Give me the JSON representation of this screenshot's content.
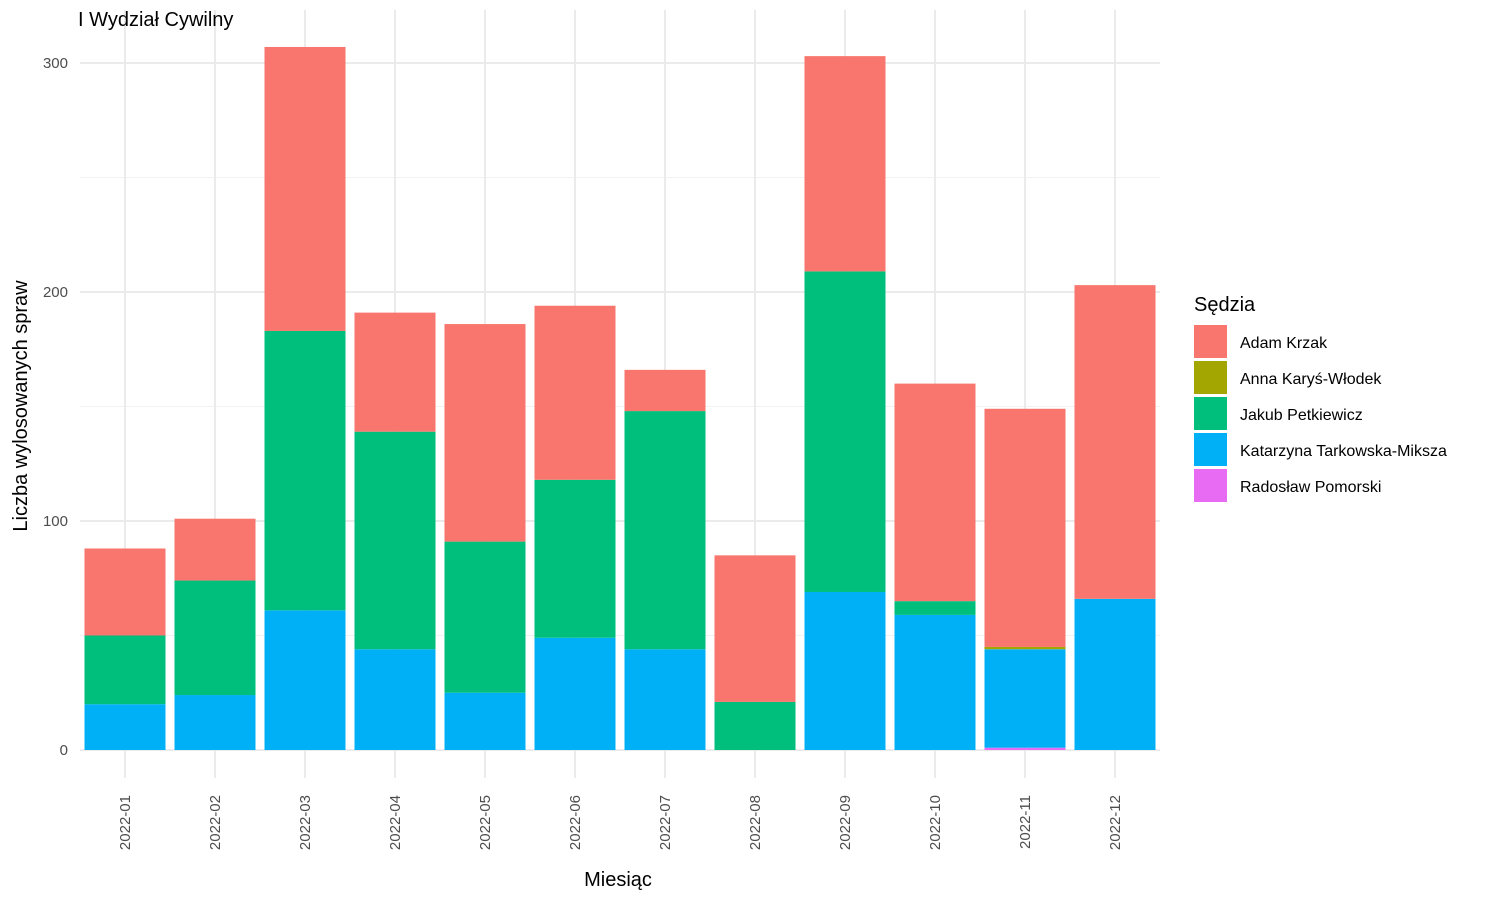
{
  "chart_data": {
    "type": "bar",
    "stacked": true,
    "title": "I Wydział Cywilny",
    "xlabel": "Miesiąc",
    "ylabel": "Liczba wylosowanych spraw",
    "ylim": [
      0,
      310
    ],
    "y_ticks": [
      0,
      100,
      200,
      300
    ],
    "y_tick_labels": [
      "0",
      "100",
      "200",
      "300"
    ],
    "grid": true,
    "legend_title": "Sędzia",
    "legend_position": "right",
    "categories": [
      "2022-01",
      "2022-02",
      "2022-03",
      "2022-04",
      "2022-05",
      "2022-06",
      "2022-07",
      "2022-08",
      "2022-09",
      "2022-10",
      "2022-11",
      "2022-12"
    ],
    "series": [
      {
        "name": "Adam Krzak",
        "color": "#F8766D",
        "values": [
          38,
          27,
          124,
          52,
          95,
          76,
          18,
          64,
          94,
          95,
          104,
          137
        ]
      },
      {
        "name": "Anna Karyś-Włodek",
        "color": "#A3A500",
        "values": [
          0,
          0,
          0,
          0,
          0,
          0,
          0,
          0,
          0,
          0,
          1,
          0
        ]
      },
      {
        "name": "Jakub Petkiewicz",
        "color": "#00BF7D",
        "values": [
          30,
          50,
          122,
          95,
          66,
          69,
          104,
          21,
          140,
          6,
          0,
          0
        ]
      },
      {
        "name": "Katarzyna Tarkowska-Miksza",
        "color": "#00B0F6",
        "values": [
          20,
          24,
          61,
          44,
          25,
          49,
          44,
          0,
          69,
          59,
          43,
          66
        ]
      },
      {
        "name": "Radosław Pomorski",
        "color": "#E76BF3",
        "values": [
          0,
          0,
          0,
          0,
          0,
          0,
          0,
          0,
          0,
          0,
          1,
          0
        ]
      }
    ]
  }
}
